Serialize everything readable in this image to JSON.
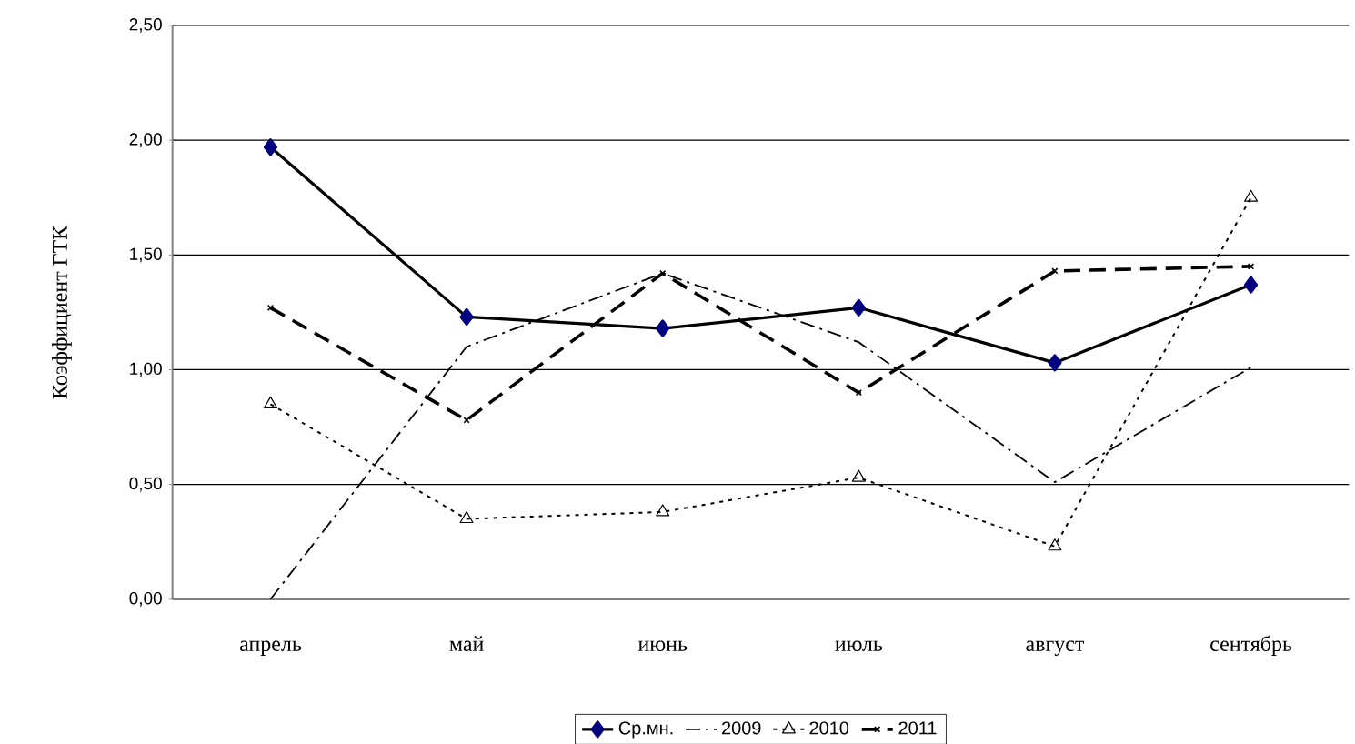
{
  "chart_data": {
    "type": "line",
    "ylabel": "Коэффициент ГТК",
    "categories": [
      "апрель",
      "май",
      "июнь",
      "июль",
      "август",
      "сентябрь"
    ],
    "ylim": [
      0,
      2.5
    ],
    "yticks": [
      {
        "value": 0,
        "label": "0,00"
      },
      {
        "value": 0.5,
        "label": "0,50"
      },
      {
        "value": 1,
        "label": "1,00"
      },
      {
        "value": 1.5,
        "label": "1,50"
      },
      {
        "value": 2,
        "label": "2,00"
      },
      {
        "value": 2.5,
        "label": "2,50"
      }
    ],
    "grid": "y",
    "legend": "bottom",
    "series": [
      {
        "name": "Ср.мн.",
        "color": "#000080",
        "marker": "diamond",
        "line_style": "solid",
        "values": [
          1.97,
          1.23,
          1.18,
          1.27,
          1.03,
          1.37
        ]
      },
      {
        "name": "2009",
        "color": "#000000",
        "marker": "none",
        "line_style": "dashdot",
        "values": [
          0.0,
          1.1,
          1.42,
          1.12,
          0.51,
          1.01
        ]
      },
      {
        "name": "2010",
        "color": "#000000",
        "marker": "triangle",
        "line_style": "dotted",
        "values": [
          0.85,
          0.35,
          0.38,
          0.53,
          0.23,
          1.75
        ]
      },
      {
        "name": "2011",
        "color": "#000000",
        "marker": "cross",
        "line_style": "dashed",
        "values": [
          1.27,
          0.78,
          1.42,
          0.9,
          1.43,
          1.45
        ]
      }
    ]
  }
}
